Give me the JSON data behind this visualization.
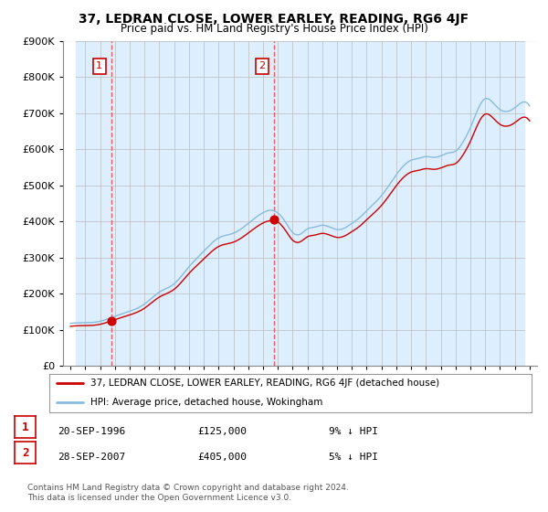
{
  "title": "37, LEDRAN CLOSE, LOWER EARLEY, READING, RG6 4JF",
  "subtitle": "Price paid vs. HM Land Registry's House Price Index (HPI)",
  "sale1_date_label": "20-SEP-1996",
  "sale1_price": 125000,
  "sale2_date_label": "28-SEP-2007",
  "sale2_price": 405000,
  "sale1_year": 1996.75,
  "sale2_year": 2007.75,
  "legend1": "37, LEDRAN CLOSE, LOWER EARLEY, READING, RG6 4JF (detached house)",
  "legend2": "HPI: Average price, detached house, Wokingham",
  "footer": "Contains HM Land Registry data © Crown copyright and database right 2024.\nThis data is licensed under the Open Government Licence v3.0.",
  "ylim_max": 900000,
  "price_line_color": "#cc0000",
  "hpi_line_color": "#88bbdd",
  "dashed_line_color": "#ee4444",
  "annot_box_color": "#cc0000",
  "grid_color": "#bbbbbb",
  "chart_bg_color": "#ddeeff",
  "hatch_color": "#cccccc",
  "xstart": 1994,
  "xend": 2025
}
